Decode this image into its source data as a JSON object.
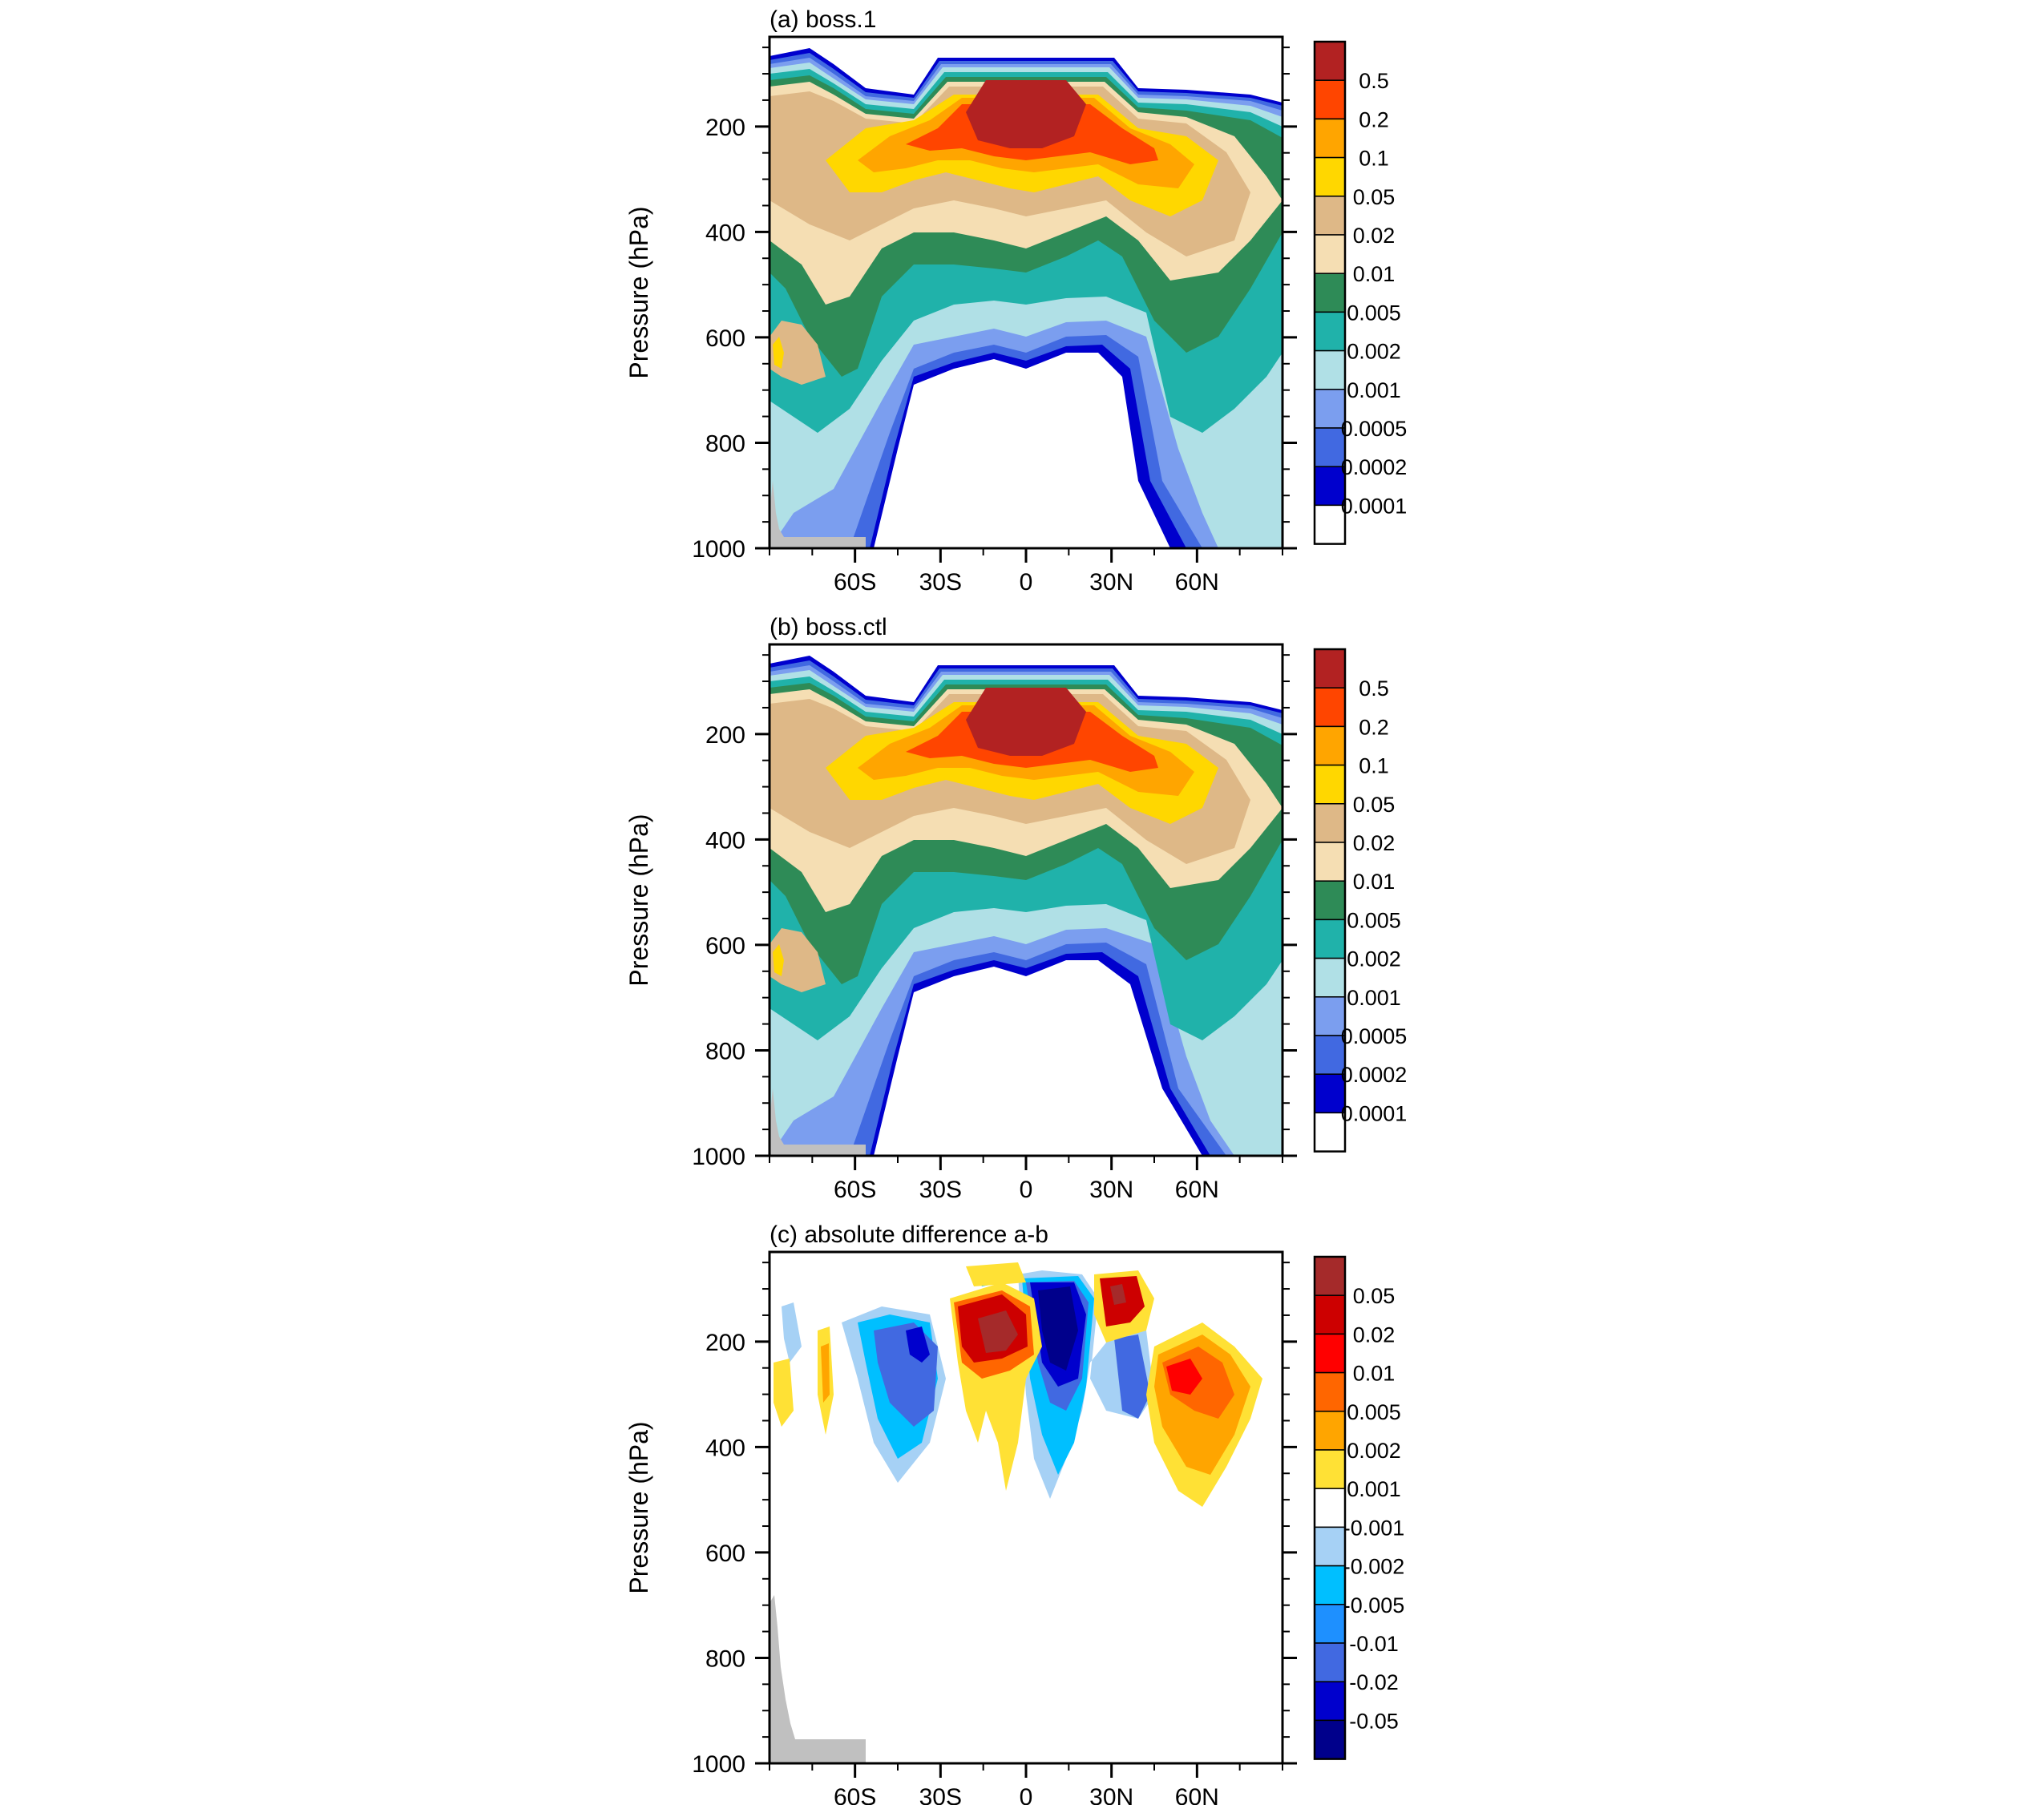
{
  "chart_data": [
    {
      "type": "heatmap",
      "title": "(a) boss.1",
      "xlabel": "",
      "ylabel": "Pressure (hPa)",
      "x_ticks": [
        "60S",
        "30S",
        "0",
        "30N",
        "60N"
      ],
      "x_tick_values": [
        -60,
        -30,
        0,
        30,
        60
      ],
      "xlim": [
        -90,
        90
      ],
      "y_ticks": [
        "200",
        "400",
        "600",
        "800",
        "1000"
      ],
      "y_tick_values": [
        200,
        400,
        600,
        800,
        1000
      ],
      "ylim": [
        1000,
        30
      ],
      "colorbar": {
        "labels": [
          "0.5",
          "0.2",
          "0.1",
          "0.05",
          "0.02",
          "0.01",
          "0.005",
          "0.002",
          "0.001",
          "0.0005",
          "0.0002",
          "0.0001"
        ],
        "colors": [
          "#b22222",
          "#ff4500",
          "#ffa500",
          "#ffd700",
          "#deb887",
          "#f5deb3",
          "#2e8b57",
          "#20b2aa",
          "#b0e0e6",
          "#7b9eef",
          "#4169e1",
          "#0000cd",
          "#ffffff"
        ]
      },
      "series": [
        {
          "level": 0,
          "pressure": [
            30,
            1000
          ]
        },
        {
          "level": 1,
          "pressure": [
            [
              -70,
              120
            ],
            [
              -30,
              160
            ],
            [
              0,
              300
            ],
            [
              30,
              160
            ],
            [
              70,
              140
            ],
            [
              88,
              140
            ]
          ]
        },
        {
          "level": 2,
          "pressure": [
            [
              -70,
              200
            ],
            [
              -30,
              260
            ],
            [
              0,
              380
            ],
            [
              30,
              260
            ],
            [
              70,
              260
            ],
            [
              88,
              230
            ]
          ]
        },
        {
          "level": 3,
          "pressure": [
            [
              -70,
              300
            ],
            [
              -30,
              380
            ],
            [
              0,
              420
            ],
            [
              30,
              380
            ],
            [
              70,
              390
            ],
            [
              88,
              330
            ]
          ]
        },
        {
          "level": 4,
          "pressure": [
            [
              -70,
              460
            ],
            [
              -30,
              500
            ],
            [
              0,
              520
            ],
            [
              30,
              500
            ],
            [
              70,
              520
            ],
            [
              88,
              480
            ]
          ]
        },
        {
          "level": 5,
          "pressure": [
            [
              -70,
              600
            ],
            [
              -30,
              600
            ],
            [
              0,
              600
            ],
            [
              30,
              580
            ],
            [
              70,
              640
            ],
            [
              88,
              660
            ]
          ]
        },
        {
          "level": 6,
          "pressure": [
            [
              -70,
              760
            ],
            [
              -30,
              700
            ],
            [
              0,
              640
            ],
            [
              30,
              640
            ],
            [
              70,
              800
            ],
            [
              88,
              820
            ]
          ]
        },
        {
          "level": 7,
          "pressure": [
            [
              -70,
              1000
            ],
            [
              -30,
              800
            ],
            [
              0,
              680
            ],
            [
              30,
              700
            ],
            [
              70,
              950
            ],
            [
              88,
              1000
            ]
          ]
        }
      ]
    },
    {
      "type": "heatmap",
      "title": "(b) boss.ctl",
      "xlabel": "",
      "ylabel": "Pressure (hPa)",
      "x_ticks": [
        "60S",
        "30S",
        "0",
        "30N",
        "60N"
      ],
      "x_tick_values": [
        -60,
        -30,
        0,
        30,
        60
      ],
      "xlim": [
        -90,
        90
      ],
      "y_ticks": [
        "200",
        "400",
        "600",
        "800",
        "1000"
      ],
      "y_tick_values": [
        200,
        400,
        600,
        800,
        1000
      ],
      "ylim": [
        1000,
        30
      ],
      "colorbar": {
        "labels": [
          "0.5",
          "0.2",
          "0.1",
          "0.05",
          "0.02",
          "0.01",
          "0.005",
          "0.002",
          "0.001",
          "0.0005",
          "0.0002",
          "0.0001"
        ],
        "colors": [
          "#b22222",
          "#ff4500",
          "#ffa500",
          "#ffd700",
          "#deb887",
          "#f5deb3",
          "#2e8b57",
          "#20b2aa",
          "#b0e0e6",
          "#7b9eef",
          "#4169e1",
          "#0000cd",
          "#ffffff"
        ]
      }
    },
    {
      "type": "heatmap",
      "title": "(c) absolute difference a-b",
      "xlabel": "",
      "ylabel": "Pressure (hPa)",
      "x_ticks": [
        "60S",
        "30S",
        "0",
        "30N",
        "60N"
      ],
      "x_tick_values": [
        -60,
        -30,
        0,
        30,
        60
      ],
      "xlim": [
        -90,
        90
      ],
      "y_ticks": [
        "200",
        "400",
        "600",
        "800",
        "1000"
      ],
      "y_tick_values": [
        200,
        400,
        600,
        800,
        1000
      ],
      "ylim": [
        1000,
        30
      ],
      "colorbar": {
        "labels": [
          "0.05",
          "0.02",
          "0.01",
          "0.005",
          "0.002",
          "0.001",
          "-0.001",
          "-0.002",
          "-0.005",
          "-0.01",
          "-0.02",
          "-0.05"
        ],
        "colors": [
          "#a52a2a",
          "#cd0000",
          "#ff0000",
          "#ff6600",
          "#ffa500",
          "#ffe135",
          "#ffffff",
          "#a6d1f5",
          "#00bfff",
          "#1e90ff",
          "#4169e1",
          "#0000cd",
          "#00008b"
        ]
      },
      "series": [
        {
          "name_ref": "positive",
          "blobs": [
            [
              -18,
              160,
              0.05
            ],
            [
              -10,
              250,
              0.01
            ],
            [
              10,
              110,
              0.005
            ],
            [
              27,
              120,
              0.02
            ],
            [
              58,
              220,
              0.02
            ],
            [
              62,
              300,
              0.005
            ],
            [
              -75,
              250,
              0.002
            ]
          ]
        },
        {
          "name_ref": "negative",
          "blobs": [
            [
              -40,
              210,
              -0.02
            ],
            [
              -45,
              320,
              -0.005
            ],
            [
              5,
              150,
              -0.05
            ],
            [
              12,
              300,
              -0.01
            ],
            [
              30,
              220,
              -0.01
            ]
          ]
        }
      ]
    }
  ]
}
